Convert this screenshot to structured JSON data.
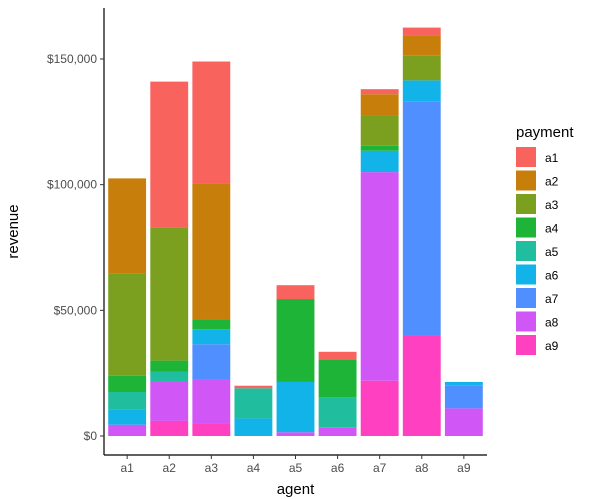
{
  "chart_data": {
    "type": "bar",
    "stacked": true,
    "xlabel": "agent",
    "ylabel": "revenue",
    "categories": [
      "a1",
      "a2",
      "a3",
      "a4",
      "a5",
      "a6",
      "a7",
      "a8",
      "a9"
    ],
    "ylim": [
      0,
      170000
    ],
    "yticks": [
      0,
      50000,
      100000,
      150000
    ],
    "ytick_labels": [
      "$0",
      "$50,000",
      "$100,000",
      "$150,000"
    ],
    "legend_title": "payment",
    "legend_position": "right",
    "grid": false,
    "series": [
      {
        "name": "a9",
        "color": "#FF40C0",
        "values": [
          0,
          6000,
          5000,
          0,
          0,
          0,
          22000,
          40000,
          0
        ]
      },
      {
        "name": "a8",
        "color": "#D057F6",
        "values": [
          4500,
          15500,
          17500,
          0,
          1500,
          3500,
          83000,
          0,
          11000
        ]
      },
      {
        "name": "a7",
        "color": "#4F8FFF",
        "values": [
          0,
          0,
          14000,
          0,
          0,
          0,
          0,
          93000,
          9000
        ]
      },
      {
        "name": "a6",
        "color": "#12B3E8",
        "values": [
          6000,
          0,
          6000,
          7000,
          20000,
          0,
          8500,
          8500,
          1500
        ]
      },
      {
        "name": "a5",
        "color": "#20BD9E",
        "values": [
          7000,
          4000,
          0,
          12000,
          0,
          12000,
          0,
          0,
          0
        ]
      },
      {
        "name": "a4",
        "color": "#1EB437",
        "values": [
          6500,
          4500,
          4000,
          0,
          33000,
          15000,
          2000,
          0,
          0
        ]
      },
      {
        "name": "a3",
        "color": "#7BA01F",
        "values": [
          40500,
          53000,
          0,
          0,
          0,
          0,
          12000,
          10000,
          0
        ]
      },
      {
        "name": "a2",
        "color": "#C87E0A",
        "values": [
          38000,
          0,
          54000,
          0,
          0,
          0,
          8500,
          8000,
          0
        ]
      },
      {
        "name": "a1",
        "color": "#F8635E",
        "values": [
          0,
          58000,
          48500,
          1000,
          5500,
          3000,
          2000,
          3000,
          0
        ]
      }
    ],
    "legend_order": [
      "a1",
      "a2",
      "a3",
      "a4",
      "a5",
      "a6",
      "a7",
      "a8",
      "a9"
    ]
  }
}
